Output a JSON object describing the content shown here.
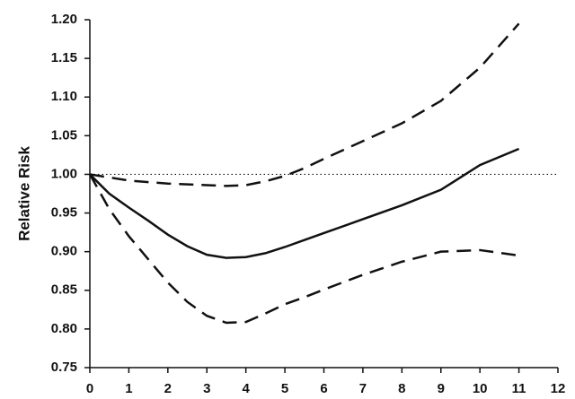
{
  "chart_data": {
    "type": "line",
    "y_label": "Relative Risk",
    "x": [
      0,
      0.5,
      1,
      1.5,
      2,
      2.5,
      3,
      3.5,
      4,
      4.5,
      5,
      5.5,
      6,
      7,
      8,
      9,
      10,
      11
    ],
    "series": [
      {
        "color": "#111111",
        "style": "solid",
        "values": [
          1.0,
          0.975,
          0.957,
          0.94,
          0.922,
          0.907,
          0.896,
          0.892,
          0.893,
          0.898,
          0.906,
          0.915,
          0.924,
          0.942,
          0.96,
          0.98,
          1.012,
          1.033
        ]
      },
      {
        "color": "#111111",
        "style": "dashed",
        "values": [
          1.0,
          0.996,
          0.992,
          0.99,
          0.988,
          0.987,
          0.986,
          0.985,
          0.986,
          0.991,
          0.998,
          1.008,
          1.02,
          1.043,
          1.066,
          1.095,
          1.138,
          1.195
        ]
      },
      {
        "color": "#111111",
        "style": "dashed",
        "values": [
          1.0,
          0.955,
          0.92,
          0.89,
          0.86,
          0.835,
          0.817,
          0.808,
          0.809,
          0.82,
          0.832,
          0.841,
          0.851,
          0.87,
          0.887,
          0.9,
          0.902,
          0.895
        ]
      }
    ],
    "reference_line": 1,
    "xlim": [
      0,
      12
    ],
    "xticks": [
      0,
      1,
      2,
      3,
      4,
      5,
      6,
      7,
      8,
      9,
      10,
      11,
      12
    ],
    "ylim": [
      0.75,
      1.2
    ],
    "yticks": [
      0.75,
      {
        "value": 0.8,
        "label": "0.80"
      },
      0.85,
      {
        "value": 0.9,
        "label": "0.90"
      },
      0.95,
      {
        "value": 1,
        "label": "1.00"
      },
      1.05,
      {
        "value": 1.1,
        "label": "1.10"
      },
      1.15,
      {
        "value": 1.2,
        "label": "1.20"
      }
    ],
    "grid": false
  }
}
